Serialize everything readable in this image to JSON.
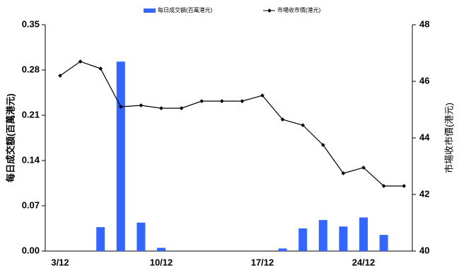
{
  "chart_data": {
    "type": "bar-line",
    "categories": [
      "3/12",
      null,
      null,
      null,
      null,
      "10/12",
      null,
      null,
      null,
      null,
      "17/12",
      null,
      null,
      null,
      null,
      "24/12",
      null,
      null
    ],
    "series": [
      {
        "name": "每日成交額(百萬港元)",
        "type": "bar",
        "color": "#3366ff",
        "axis": "y",
        "values": [
          0,
          0,
          0.037,
          0.293,
          0.044,
          0.005,
          0,
          0,
          0,
          0,
          0,
          0.004,
          0.035,
          0.048,
          0.038,
          0.052,
          0.025,
          0
        ]
      },
      {
        "name": "市場收市價(港元)",
        "type": "line",
        "color": "#000000",
        "axis": "y2",
        "values": [
          46.2,
          46.7,
          46.45,
          45.1,
          45.15,
          45.05,
          45.05,
          45.3,
          45.3,
          45.3,
          45.5,
          44.65,
          44.45,
          43.75,
          42.75,
          42.95,
          42.3,
          42.3
        ]
      }
    ],
    "ylabel": "每日成交額(百萬港元)",
    "y2label": "市場收市價(港元)",
    "ylim": [
      0,
      0.35
    ],
    "yticks": [
      {
        "value": 0,
        "label": "0.00"
      },
      0.07,
      0.14,
      0.21,
      0.28,
      0.35
    ],
    "y2lim": [
      40,
      48
    ],
    "y2ticks": [
      40,
      42,
      44,
      46,
      48
    ],
    "grid": false,
    "legend": "top"
  }
}
